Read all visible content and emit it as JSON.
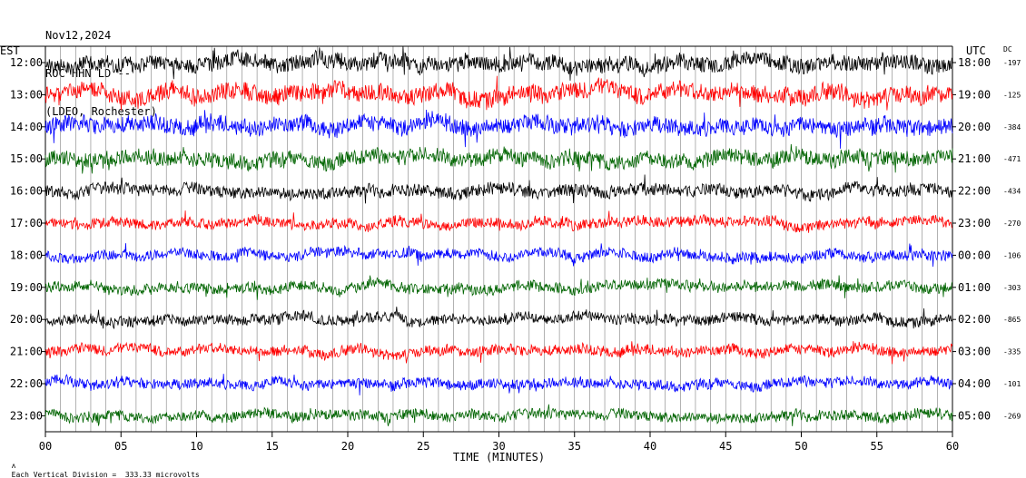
{
  "header": {
    "date": "Nov12,2024",
    "station": "ROC HHN LD --",
    "network": "(LDEO, Rochester)"
  },
  "colors": {
    "trace_cycle": [
      "#000000",
      "#ff0000",
      "#0000ff",
      "#006400"
    ],
    "grid": "#808080",
    "background": "#ffffff"
  },
  "footer": {
    "icon": "seismometer-icon",
    "scale_text": "Each Vertical Division =  333.33 microvolts"
  },
  "chart_data": {
    "type": "line",
    "title": "",
    "xlabel": "TIME (MINUTES)",
    "x_ticks": [
      "00",
      "05",
      "10",
      "15",
      "20",
      "25",
      "30",
      "35",
      "40",
      "45",
      "50",
      "55",
      "60"
    ],
    "xlim": [
      0,
      60
    ],
    "left_axis_label": "EST",
    "right_axis_label": "UTC",
    "dc_label": "DC",
    "rows": [
      {
        "est": "12:00",
        "utc": "18:00",
        "dc": "-197",
        "color": "#000000",
        "amplitude": 0.9
      },
      {
        "est": "13:00",
        "utc": "19:00",
        "dc": "-125",
        "color": "#ff0000",
        "amplitude": 1.0
      },
      {
        "est": "14:00",
        "utc": "20:00",
        "dc": "-384",
        "color": "#0000ff",
        "amplitude": 0.95
      },
      {
        "est": "15:00",
        "utc": "21:00",
        "dc": "-471",
        "color": "#006400",
        "amplitude": 0.9
      },
      {
        "est": "16:00",
        "utc": "22:00",
        "dc": "-434",
        "color": "#000000",
        "amplitude": 0.7
      },
      {
        "est": "17:00",
        "utc": "23:00",
        "dc": "-270",
        "color": "#ff0000",
        "amplitude": 0.6
      },
      {
        "est": "18:00",
        "utc": "00:00",
        "dc": "-106",
        "color": "#0000ff",
        "amplitude": 0.6
      },
      {
        "est": "19:00",
        "utc": "01:00",
        "dc": "-303",
        "color": "#006400",
        "amplitude": 0.6
      },
      {
        "est": "20:00",
        "utc": "02:00",
        "dc": "-865",
        "color": "#000000",
        "amplitude": 0.6
      },
      {
        "est": "21:00",
        "utc": "03:00",
        "dc": "-335",
        "color": "#ff0000",
        "amplitude": 0.6
      },
      {
        "est": "22:00",
        "utc": "04:00",
        "dc": "-101",
        "color": "#0000ff",
        "amplitude": 0.6
      },
      {
        "est": "23:00",
        "utc": "05:00",
        "dc": "-269",
        "color": "#006400",
        "amplitude": 0.6
      }
    ]
  }
}
